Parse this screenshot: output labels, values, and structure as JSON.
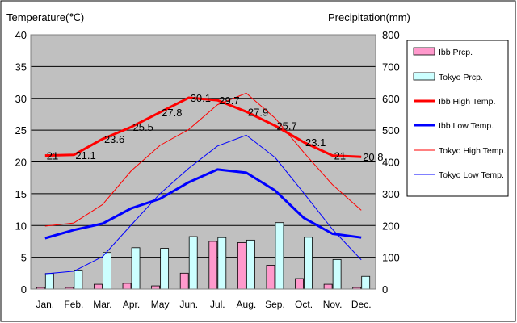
{
  "chart_data": {
    "type": "bar+line",
    "title": "",
    "y_left_label": "Temperature(℃)",
    "y_right_label": "Precipitation(mm)",
    "y_left_range": [
      0,
      40
    ],
    "y_left_ticks": [
      "0",
      "5",
      "10",
      "15",
      "20",
      "25",
      "30",
      "35",
      "40"
    ],
    "y_right_range": [
      0,
      800
    ],
    "y_right_ticks": [
      "0",
      "100",
      "200",
      "300",
      "400",
      "500",
      "600",
      "700",
      "800"
    ],
    "categories": [
      "Jan.",
      "Feb.",
      "Mar.",
      "Apr.",
      "May",
      "Jun.",
      "Jul.",
      "Aug.",
      "Sep.",
      "Oct.",
      "Nov.",
      "Dec."
    ],
    "grid": true,
    "legend_position": "right",
    "series": [
      {
        "name": "Ibb Prcp.",
        "kind": "bar",
        "axis": "right",
        "color": "#ff99cc",
        "values": [
          5,
          5,
          15,
          18,
          10,
          50,
          150,
          146,
          75,
          33,
          15,
          5
        ]
      },
      {
        "name": "Tokyo Prcp.",
        "kind": "bar",
        "axis": "right",
        "color": "#ccffff",
        "values": [
          49,
          60,
          115,
          130,
          128,
          165,
          162,
          154,
          209,
          163,
          93,
          40
        ]
      },
      {
        "name": "Ibb High Temp.",
        "kind": "line",
        "axis": "left",
        "color": "#ff0000",
        "values": [
          21,
          21.1,
          23.6,
          25.5,
          27.8,
          30.1,
          29.7,
          27.9,
          25.7,
          23.1,
          21,
          20.8
        ]
      },
      {
        "name": "Ibb Low Temp.",
        "kind": "line",
        "axis": "left",
        "color": "#0000ff",
        "values": [
          8,
          9.3,
          10.3,
          12.7,
          14.2,
          16.8,
          18.8,
          18.3,
          15.5,
          11.2,
          8.7,
          8.1
        ]
      },
      {
        "name": "Tokyo High Temp.",
        "kind": "line",
        "axis": "left",
        "color": "#ff0000",
        "values": [
          9.9,
          10.4,
          13.3,
          18.6,
          22.6,
          25.1,
          29,
          30.8,
          26.9,
          21.5,
          16.4,
          12.4
        ]
      },
      {
        "name": "Tokyo Low Temp.",
        "kind": "line",
        "axis": "left",
        "color": "#0000ff",
        "values": [
          2.4,
          2.8,
          5.1,
          10.1,
          15,
          19,
          22.5,
          24.2,
          20.7,
          15.1,
          9.4,
          4.6
        ]
      }
    ],
    "data_labels": [
      "21",
      "21.1",
      "23.6",
      "25.5",
      "27.8",
      "30.1",
      "29.7",
      "27.9",
      "25.7",
      "23.1",
      "21",
      "20.8"
    ]
  }
}
